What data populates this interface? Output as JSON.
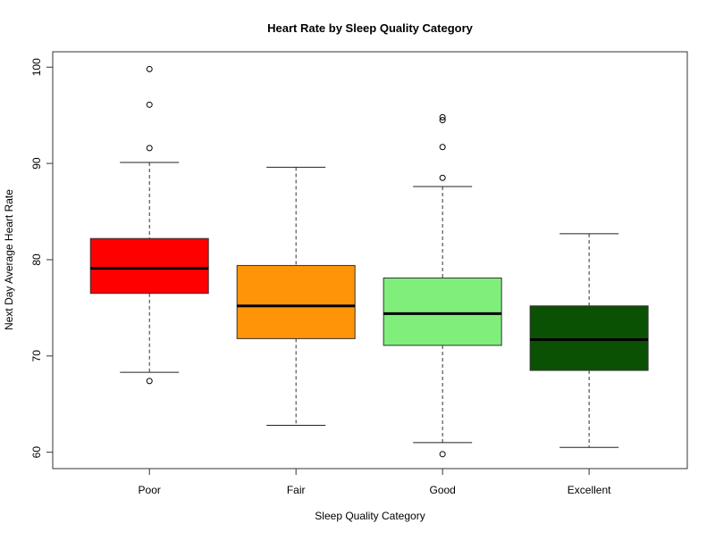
{
  "chart_data": {
    "type": "box",
    "title": "Heart Rate by Sleep Quality Category",
    "xlabel": "Sleep Quality Category",
    "ylabel": "Next Day Average Heart Rate",
    "ylim": [
      58.3,
      101.6
    ],
    "yticks": [
      60,
      70,
      80,
      90,
      100
    ],
    "grid": false,
    "categories": [
      "Poor",
      "Fair",
      "Good",
      "Excellent"
    ],
    "colors": [
      "#ff0000",
      "#ff9408",
      "#80ee7b",
      "#0b5104"
    ],
    "boxes": [
      {
        "whisker_low": 68.3,
        "q1": 76.5,
        "median": 79.1,
        "q3": 82.2,
        "whisker_high": 90.1,
        "outliers": [
          99.8,
          96.1,
          91.6,
          67.4
        ]
      },
      {
        "whisker_low": 62.8,
        "q1": 71.8,
        "median": 75.2,
        "q3": 79.4,
        "whisker_high": 89.6,
        "outliers": []
      },
      {
        "whisker_low": 61.0,
        "q1": 71.1,
        "median": 74.4,
        "q3": 78.1,
        "whisker_high": 87.6,
        "outliers": [
          94.8,
          94.5,
          91.7,
          88.5,
          59.8
        ]
      },
      {
        "whisker_low": 60.5,
        "q1": 68.5,
        "median": 71.7,
        "q3": 75.2,
        "whisker_high": 82.7,
        "outliers": []
      }
    ]
  }
}
